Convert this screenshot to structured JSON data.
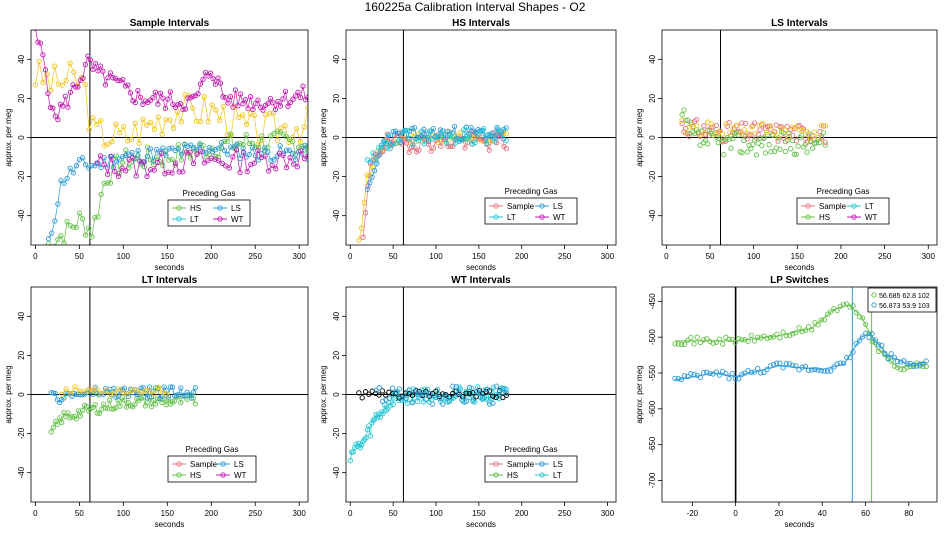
{
  "figure_title": "160225a   Calibration Interval Shapes - O2",
  "colors": {
    "Sample": "#E8717F",
    "HS": "#66C24A",
    "LS": "#2E9BD8",
    "LT": "#25C6D4",
    "WT": "#C21BB0",
    "black": "#000000",
    "yellow": "#F0C419"
  },
  "chart_data": [
    {
      "id": "sample",
      "type": "scatter",
      "title": "Sample Intervals",
      "xlabel": "seconds",
      "ylabel": "approx. per meg",
      "xlim": [
        -5,
        310
      ],
      "ylim": [
        -55,
        55
      ],
      "vline": 62,
      "hline": 0,
      "xticks": [
        0,
        50,
        100,
        150,
        200,
        250,
        300
      ],
      "yticks": [
        -40,
        -20,
        0,
        20,
        40
      ],
      "legend": {
        "title": "Preceding Gas",
        "entries": [
          "HS",
          "LS",
          "LT",
          "WT"
        ]
      },
      "series": [
        {
          "name": "LT",
          "color_key": "yellow",
          "line": true,
          "start": 0,
          "end": 310,
          "n": 72,
          "amp": 9,
          "seed": 3,
          "anchors": [
            [
              0,
              32
            ],
            [
              20,
              28
            ],
            [
              40,
              30
            ],
            [
              55,
              28
            ],
            [
              65,
              3
            ],
            [
              100,
              0
            ],
            [
              160,
              14
            ],
            [
              200,
              14
            ],
            [
              250,
              3
            ],
            [
              310,
              7
            ]
          ]
        },
        {
          "name": "WT",
          "color_key": "WT",
          "line": true,
          "start": 0,
          "end": 310,
          "n": 110,
          "amp": 5,
          "seed": 5,
          "anchors": [
            [
              0,
              52
            ],
            [
              10,
              40
            ],
            [
              20,
              10
            ],
            [
              35,
              18
            ],
            [
              50,
              30
            ],
            [
              60,
              38
            ],
            [
              70,
              33
            ],
            [
              120,
              20
            ],
            [
              180,
              18
            ],
            [
              200,
              36
            ],
            [
              215,
              20
            ],
            [
              260,
              18
            ],
            [
              310,
              22
            ]
          ]
        },
        {
          "name": "HS",
          "color_key": "HS",
          "line": true,
          "start": 15,
          "end": 310,
          "n": 85,
          "amp": 6,
          "seed": 7,
          "anchors": [
            [
              15,
              -55
            ],
            [
              30,
              -50
            ],
            [
              50,
              -42
            ],
            [
              65,
              -48
            ],
            [
              80,
              -20
            ],
            [
              100,
              -12
            ],
            [
              150,
              -10
            ],
            [
              200,
              -5
            ],
            [
              250,
              -2
            ],
            [
              310,
              -3
            ]
          ]
        },
        {
          "name": "LS",
          "color_key": "LS",
          "line": true,
          "start": 15,
          "end": 310,
          "n": 85,
          "amp": 4,
          "seed": 11,
          "anchors": [
            [
              15,
              -55
            ],
            [
              30,
              -22
            ],
            [
              50,
              -14
            ],
            [
              70,
              -14
            ],
            [
              100,
              -10
            ],
            [
              150,
              -8
            ],
            [
              200,
              -5
            ],
            [
              250,
              -8
            ],
            [
              310,
              -8
            ]
          ]
        },
        {
          "name": "WT2",
          "color_key": "WT",
          "line": true,
          "start": 70,
          "end": 310,
          "n": 60,
          "amp": 6,
          "seed": 13,
          "anchors": [
            [
              70,
              -14
            ],
            [
              120,
              -15
            ],
            [
              180,
              -12
            ],
            [
              240,
              -12
            ],
            [
              310,
              -10
            ]
          ]
        }
      ]
    },
    {
      "id": "hs",
      "type": "scatter",
      "title": "HS Intervals",
      "xlabel": "seconds",
      "ylabel": "approx. per meg",
      "xlim": [
        -5,
        310
      ],
      "ylim": [
        -55,
        55
      ],
      "vline": 62,
      "hline": 0,
      "xticks": [
        0,
        50,
        100,
        150,
        200,
        250,
        300
      ],
      "yticks": [
        -40,
        -20,
        0,
        20,
        40
      ],
      "legend": {
        "title": "Preceding Gas",
        "entries": [
          "Sample",
          "LS",
          "LT",
          "WT"
        ]
      },
      "series": [
        {
          "name": "LT",
          "color_key": "yellow",
          "line": true,
          "start": 10,
          "end": 182,
          "n": 55,
          "amp": 3,
          "seed": 17,
          "anchors": [
            [
              10,
              -55
            ],
            [
              20,
              -20
            ],
            [
              35,
              -5
            ],
            [
              60,
              0
            ],
            [
              182,
              0
            ]
          ]
        },
        {
          "name": "Sample",
          "color_key": "Sample",
          "line": true,
          "start": 15,
          "end": 182,
          "n": 60,
          "amp": 5,
          "seed": 19,
          "anchors": [
            [
              15,
              -52
            ],
            [
              25,
              -10
            ],
            [
              40,
              -3
            ],
            [
              100,
              -2
            ],
            [
              182,
              -2
            ]
          ]
        },
        {
          "name": "LS",
          "color_key": "LS",
          "line": true,
          "start": 20,
          "end": 182,
          "n": 60,
          "amp": 4,
          "seed": 23,
          "anchors": [
            [
              20,
              -30
            ],
            [
              40,
              0
            ],
            [
              100,
              2
            ],
            [
              182,
              2
            ]
          ]
        },
        {
          "name": "LT2",
          "color_key": "LT",
          "line": true,
          "start": 20,
          "end": 182,
          "n": 50,
          "amp": 4,
          "seed": 29,
          "anchors": [
            [
              20,
              -15
            ],
            [
              50,
              0
            ],
            [
              182,
              1
            ]
          ]
        }
      ]
    },
    {
      "id": "ls",
      "type": "scatter",
      "title": "LS Intervals",
      "xlabel": "seconds",
      "ylabel": "approx. per meg",
      "xlim": [
        -5,
        310
      ],
      "ylim": [
        -55,
        55
      ],
      "vline": 62,
      "hline": 0,
      "xticks": [
        0,
        50,
        100,
        150,
        200,
        250,
        300
      ],
      "yticks": [
        -40,
        -20,
        0,
        20,
        40
      ],
      "legend": {
        "title": "Preceding Gas",
        "entries": [
          "Sample",
          "LT",
          "HS",
          "WT"
        ]
      },
      "series": [
        {
          "name": "Sample",
          "color_key": "Sample",
          "line": false,
          "start": 18,
          "end": 182,
          "n": 80,
          "amp": 5,
          "seed": 31,
          "anchors": [
            [
              18,
              6
            ],
            [
              50,
              3
            ],
            [
              182,
              2
            ]
          ]
        },
        {
          "name": "HS",
          "color_key": "HS",
          "line": false,
          "start": 18,
          "end": 182,
          "n": 80,
          "amp": 6,
          "seed": 37,
          "anchors": [
            [
              18,
              10
            ],
            [
              30,
              0
            ],
            [
              60,
              -3
            ],
            [
              182,
              -3
            ]
          ]
        },
        {
          "name": "LT",
          "color_key": "yellow",
          "line": false,
          "start": 18,
          "end": 182,
          "n": 40,
          "amp": 4,
          "seed": 41,
          "anchors": [
            [
              18,
              5
            ],
            [
              182,
              3
            ]
          ]
        }
      ]
    },
    {
      "id": "lt",
      "type": "scatter",
      "title": "LT Intervals",
      "xlabel": "seconds",
      "ylabel": "approx. per meg",
      "xlim": [
        -5,
        310
      ],
      "ylim": [
        -55,
        55
      ],
      "vline": 62,
      "hline": 0,
      "xticks": [
        0,
        50,
        100,
        150,
        200,
        250,
        300
      ],
      "yticks": [
        -40,
        -20,
        0,
        20,
        40
      ],
      "legend": {
        "title": "Preceding Gas",
        "entries": [
          "Sample",
          "LS",
          "HS",
          "WT"
        ]
      },
      "series": [
        {
          "name": "HS",
          "color_key": "HS",
          "line": true,
          "start": 18,
          "end": 182,
          "n": 70,
          "amp": 3,
          "seed": 43,
          "anchors": [
            [
              18,
              -20
            ],
            [
              30,
              -12
            ],
            [
              60,
              -8
            ],
            [
              100,
              -4
            ],
            [
              182,
              -3
            ]
          ]
        },
        {
          "name": "LS",
          "color_key": "LS",
          "line": true,
          "start": 18,
          "end": 182,
          "n": 70,
          "amp": 3,
          "seed": 47,
          "anchors": [
            [
              18,
              -2
            ],
            [
              60,
              1
            ],
            [
              182,
              1
            ]
          ]
        },
        {
          "name": "LT",
          "color_key": "yellow",
          "line": true,
          "start": 30,
          "end": 150,
          "n": 25,
          "amp": 2,
          "seed": 53,
          "anchors": [
            [
              30,
              2
            ],
            [
              150,
              2
            ]
          ]
        }
      ]
    },
    {
      "id": "wt",
      "type": "scatter",
      "title": "WT Intervals",
      "xlabel": "seconds",
      "ylabel": "approx. per meg",
      "xlim": [
        -5,
        310
      ],
      "ylim": [
        -55,
        55
      ],
      "vline": 62,
      "hline": 0,
      "xticks": [
        0,
        50,
        100,
        150,
        200,
        250,
        300
      ],
      "yticks": [
        -40,
        -20,
        0,
        20,
        40
      ],
      "legend": {
        "title": "Preceding Gas",
        "entries": [
          "Sample",
          "LS",
          "HS",
          "LT"
        ]
      },
      "series": [
        {
          "name": "LT",
          "color_key": "LT",
          "line": true,
          "start": 0,
          "end": 182,
          "n": 110,
          "amp": 4,
          "seed": 59,
          "anchors": [
            [
              0,
              -30
            ],
            [
              15,
              -25
            ],
            [
              30,
              -12
            ],
            [
              50,
              -2
            ],
            [
              80,
              0
            ],
            [
              182,
              0
            ]
          ]
        },
        {
          "name": "Black",
          "color_key": "black",
          "line": false,
          "start": 10,
          "end": 182,
          "n": 45,
          "amp": 2,
          "seed": 61,
          "anchors": [
            [
              10,
              0
            ],
            [
              182,
              0
            ]
          ]
        },
        {
          "name": "LS",
          "color_key": "LS",
          "line": false,
          "start": 30,
          "end": 182,
          "n": 40,
          "amp": 5,
          "seed": 67,
          "anchors": [
            [
              30,
              0
            ],
            [
              182,
              0
            ]
          ]
        }
      ]
    },
    {
      "id": "lp",
      "type": "scatter",
      "title": "LP Switches",
      "xlabel": "seconds",
      "ylabel": "approx. per meg",
      "xlim": [
        -34,
        93
      ],
      "ylim": [
        -730,
        -430
      ],
      "vline": 0,
      "hline": null,
      "xticks": [
        -20,
        0,
        20,
        40,
        60,
        80
      ],
      "yticks": [
        -700,
        -650,
        -600,
        -550,
        -500,
        -450
      ],
      "legend": {
        "title": "",
        "entries": [
          "56.685 62.8 102",
          "56.873 53.9 103"
        ]
      },
      "vlines_colored": [
        {
          "x": 62.8,
          "color_key": "HS"
        },
        {
          "x": 53.9,
          "color_key": "LS"
        }
      ],
      "series": [
        {
          "name": "56.685 62.8 102",
          "color_key": "HS",
          "line": true,
          "smooth": true,
          "start": -28,
          "end": 88,
          "n": 80,
          "amp": 5,
          "seed": 71,
          "anchors": [
            [
              -28,
              -505
            ],
            [
              0,
              -505
            ],
            [
              20,
              -498
            ],
            [
              35,
              -488
            ],
            [
              45,
              -462
            ],
            [
              52,
              -455
            ],
            [
              58,
              -470
            ],
            [
              65,
              -515
            ],
            [
              75,
              -542
            ],
            [
              88,
              -538
            ]
          ]
        },
        {
          "name": "56.873 53.9 103",
          "color_key": "LS",
          "line": true,
          "smooth": true,
          "start": -28,
          "end": 88,
          "n": 80,
          "amp": 5,
          "seed": 73,
          "anchors": [
            [
              -28,
              -560
            ],
            [
              -10,
              -550
            ],
            [
              0,
              -555
            ],
            [
              20,
              -540
            ],
            [
              40,
              -545
            ],
            [
              50,
              -538
            ],
            [
              58,
              -500
            ],
            [
              62,
              -495
            ],
            [
              70,
              -525
            ],
            [
              80,
              -538
            ],
            [
              88,
              -535
            ]
          ]
        }
      ]
    }
  ]
}
